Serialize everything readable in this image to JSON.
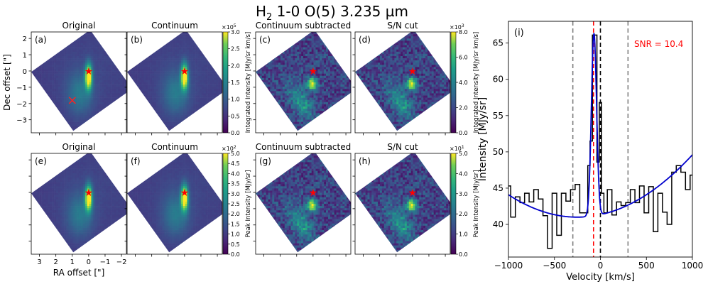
{
  "figure": {
    "title_main": "H",
    "title_sub": "2",
    "title_rest": " 1-0 O(5) 3.235 µm"
  },
  "panels": [
    {
      "id": "a",
      "label": "(a)",
      "title": "Original",
      "kind": "original",
      "row": "integrated"
    },
    {
      "id": "b",
      "label": "(b)",
      "title": "Continuum",
      "kind": "original",
      "row": "integrated"
    },
    {
      "id": "c",
      "label": "(c)",
      "title": "Continuum subtracted",
      "kind": "subtracted",
      "row": "integrated"
    },
    {
      "id": "d",
      "label": "(d)",
      "title": "S/N cut",
      "kind": "subtracted",
      "row": "integrated"
    },
    {
      "id": "e",
      "label": "(e)",
      "title": "Original",
      "kind": "original",
      "row": "peak"
    },
    {
      "id": "f",
      "label": "(f)",
      "title": "Continuum",
      "kind": "original",
      "row": "peak"
    },
    {
      "id": "g",
      "label": "(g)",
      "title": "Continuum subtracted",
      "kind": "subtracted",
      "row": "peak"
    },
    {
      "id": "h",
      "label": "(h)",
      "title": "S/N cut",
      "kind": "subtracted",
      "row": "peak"
    }
  ],
  "colorbars": {
    "cb1": {
      "label": "Integrated Intensity [MJy/sr km/s]",
      "scale": "×10",
      "exp": "5",
      "ticks": [
        "0.0",
        "0.5",
        "1.0",
        "1.5",
        "2.0",
        "2.5",
        "3.0"
      ],
      "range": [
        0,
        3.0
      ]
    },
    "cb2": {
      "label": "Integrated Intensity [MJy/sr km/s]",
      "scale": "×10",
      "exp": "3",
      "ticks": [
        "0.0",
        "2.0",
        "4.0",
        "6.0",
        "8.0"
      ],
      "range": [
        0,
        8.0
      ]
    },
    "cb3": {
      "label": "Peak Intensity [MJy/sr]",
      "scale": "×10",
      "exp": "2",
      "ticks": [
        "0.0",
        "0.5",
        "1.0",
        "1.5",
        "2.0",
        "2.5",
        "3.0",
        "3.5",
        "4.0",
        "4.5",
        "5.0"
      ],
      "range": [
        0,
        5.0
      ]
    },
    "cb4": {
      "label": "Peak Intensity [MJy/sr]",
      "scale": "×10",
      "exp": "1",
      "ticks": [
        "0.0",
        "1.0",
        "2.0",
        "3.0",
        "4.0",
        "5.0"
      ],
      "range": [
        0,
        5.0
      ]
    }
  },
  "maps_axes": {
    "xlabel": "RA offset [\"]",
    "ylabel": "Dec offset [\"]",
    "xticks": [
      "3",
      "2",
      "1",
      "0",
      "−1",
      "−2"
    ],
    "yticks": [
      "2",
      "1",
      "0",
      "−1",
      "−2",
      "−3"
    ],
    "xlim": [
      3.5,
      -2.3
    ],
    "ylim": [
      -3.8,
      2.4
    ],
    "xtick_values": [
      3,
      2,
      1,
      0,
      -1,
      -2
    ],
    "ytick_values": [
      2,
      1,
      0,
      -1,
      -2,
      -3
    ]
  },
  "markers": {
    "source_star": {
      "ra": 0.0,
      "dec": 0.0,
      "symbol": "★",
      "color": "#ff0000"
    },
    "x_mark": {
      "ra": 1.0,
      "dec": -1.8,
      "symbol": "×",
      "color": "#ff2020",
      "panel": "a"
    }
  },
  "chart_data": {
    "type": "line",
    "panel_label": "(i)",
    "title": "",
    "xlabel": "Velocity [km/s]",
    "ylabel": "Intensity [MJy/sr]",
    "xlim": [
      -1000,
      1000
    ],
    "ylim": [
      35.5,
      68
    ],
    "xticks": [
      -1000,
      -500,
      0,
      500,
      1000
    ],
    "xtick_labels": [
      "−1000",
      "−500",
      "0",
      "500",
      "1000"
    ],
    "yticks": [
      40,
      45,
      50,
      55,
      60,
      65
    ],
    "ytick_labels": [
      "40",
      "45",
      "50",
      "55",
      "60",
      "65"
    ],
    "annotation": "SNR = 10.4",
    "annotation_color": "#ff0000",
    "vlines": [
      {
        "x": -300,
        "color": "#808080",
        "style": "dashed"
      },
      {
        "x": 300,
        "color": "#808080",
        "style": "dashed"
      },
      {
        "x": -75,
        "color": "#ff0000",
        "style": "dashed"
      },
      {
        "x": 0,
        "color": "#000000",
        "style": "dashed"
      }
    ],
    "series": [
      {
        "name": "spectrum",
        "style": "steps-mid",
        "color": "#000000",
        "x": [
          -1000,
          -950,
          -900,
          -850,
          -800,
          -750,
          -700,
          -650,
          -600,
          -550,
          -500,
          -450,
          -400,
          -350,
          -300,
          -250,
          -200,
          -150,
          -125,
          -100,
          -75,
          -50,
          -25,
          0,
          25,
          50,
          100,
          150,
          200,
          250,
          300,
          350,
          400,
          450,
          500,
          550,
          600,
          650,
          700,
          750,
          800,
          850,
          900,
          950,
          1000
        ],
        "y": [
          45.3,
          41.0,
          43.8,
          43.0,
          44.3,
          43.1,
          44.8,
          43.5,
          41.2,
          36.7,
          44.3,
          38.5,
          44.3,
          43.2,
          44.8,
          45.5,
          41.6,
          41.6,
          48.1,
          51.5,
          66.1,
          66.1,
          48.6,
          56.8,
          44.3,
          41.6,
          44.8,
          41.3,
          43.1,
          42.6,
          43.0,
          44.8,
          43.0,
          45.3,
          41.6,
          45.2,
          39.0,
          44.3,
          41.7,
          40.0,
          47.2,
          48.1,
          47.2,
          44.8,
          46.8
        ]
      },
      {
        "name": "gaussian + polynomial fit",
        "style": "line",
        "color": "#0000cc",
        "model": {
          "baseline_quad": [
            41.0,
            -250,
            5.5e-06
          ],
          "amplitude": 25.2,
          "center": -70,
          "sigma": 28
        }
      }
    ]
  }
}
